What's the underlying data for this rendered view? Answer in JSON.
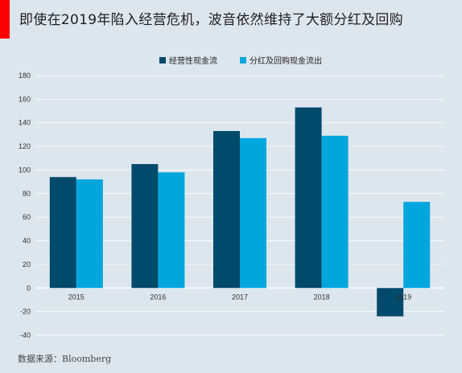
{
  "title": "即使在2019年陷入经营危机，波音依然维持了大额分红及回购",
  "source": "数据来源：Bloomberg",
  "colors": {
    "accent": "#ff0000",
    "operating": "#004a6b",
    "dividends": "#00a6dc",
    "background": "#dce6ee",
    "grid": "#ffffff"
  },
  "chart_data": {
    "type": "bar",
    "categories": [
      "2015",
      "2016",
      "2017",
      "2018",
      "2019"
    ],
    "series": [
      {
        "name": "经营性现金流",
        "values": [
          94,
          105,
          133,
          153,
          -24
        ]
      },
      {
        "name": "分红及回购现金流出",
        "values": [
          92,
          98,
          127,
          129,
          73
        ]
      }
    ],
    "y_ticks": [
      "180",
      "160",
      "140",
      "120",
      "100",
      "80",
      "60",
      "40",
      "20",
      "0",
      "-20",
      "-40"
    ],
    "ylim": [
      -40,
      180
    ],
    "grid": true,
    "legend": "top-center"
  }
}
